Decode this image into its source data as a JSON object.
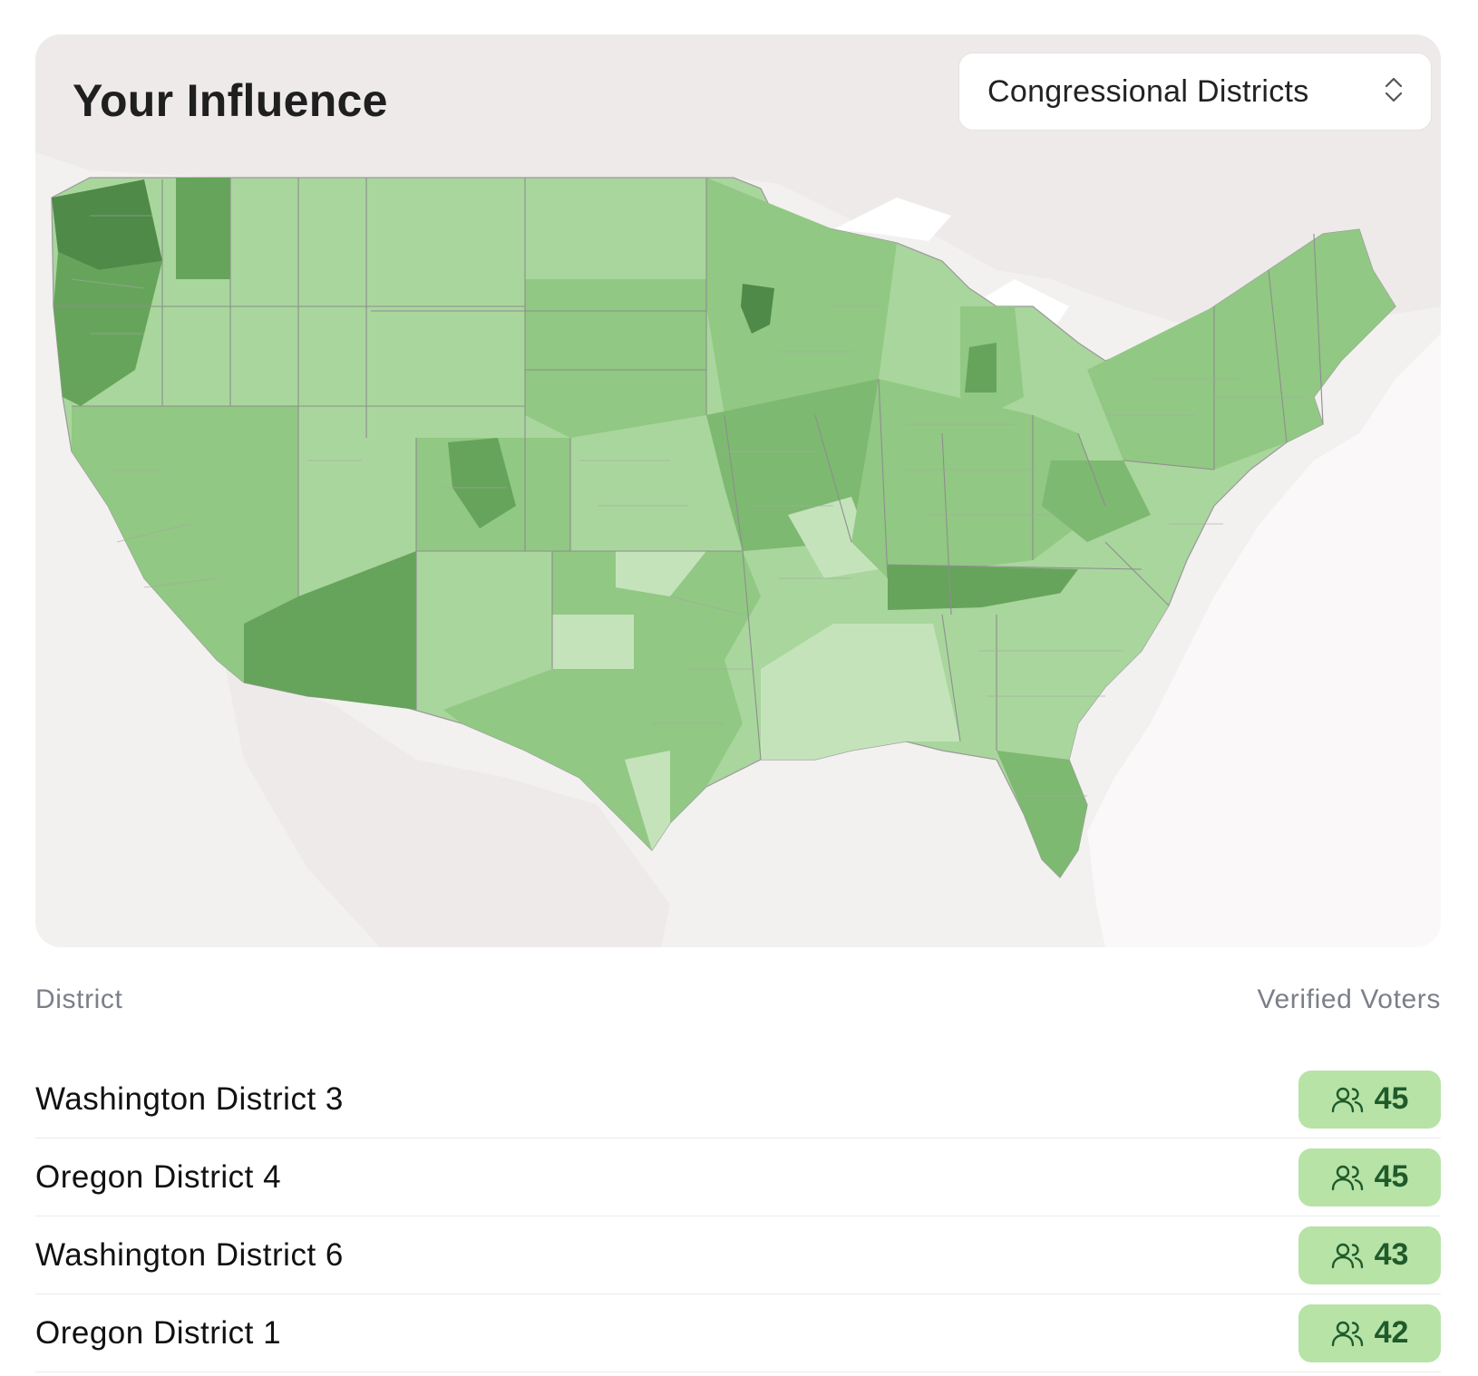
{
  "header": {
    "title": "Your Influence"
  },
  "selector": {
    "value": "Congressional Districts",
    "icon": "chevron-up-down-icon"
  },
  "table": {
    "columns": {
      "district": "District",
      "voters": "Verified Voters"
    },
    "rows": [
      {
        "district": "Washington District 3",
        "voters": "45"
      },
      {
        "district": "Oregon District 4",
        "voters": "45"
      },
      {
        "district": "Washington District 6",
        "voters": "43"
      },
      {
        "district": "Oregon District 1",
        "voters": "42"
      }
    ]
  },
  "colors": {
    "map_background": "#f3f0f0",
    "water": "#ffffff",
    "land": "#e9e5e5",
    "greens": [
      "#c4e3bb",
      "#a9d69d",
      "#91c883",
      "#7db970",
      "#66a45b",
      "#4f8a48"
    ],
    "badge_bg": "#b7e3a7",
    "badge_text": "#1f5a2b"
  },
  "icons": {
    "badge": "users-icon"
  }
}
